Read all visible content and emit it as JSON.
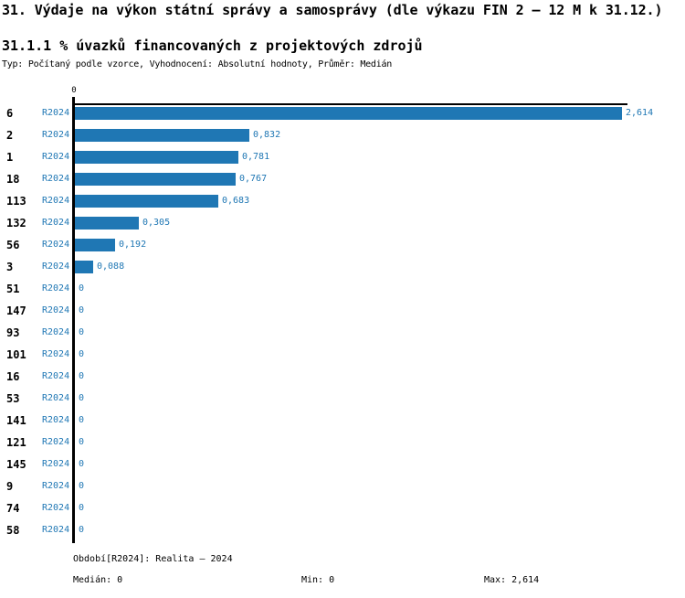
{
  "header": {
    "title": "31. Výdaje na výkon státní správy a samosprávy (dle výkazu FIN 2 – 12 M k 31.12.)",
    "subtitle": "31.1.1 % úvazků financovaných z projektových zdrojů",
    "meta": "Typ: Počítaný podle vzorce, Vyhodnocení: Absolutní hodnoty, Průměr: Medián"
  },
  "chart_data": {
    "type": "bar",
    "orientation": "horizontal",
    "title": "31.1.1 % úvazků financovaných z projektových zdrojů",
    "series_label": "R2024",
    "categories": [
      "6",
      "2",
      "1",
      "18",
      "113",
      "132",
      "56",
      "3",
      "51",
      "147",
      "93",
      "101",
      "16",
      "53",
      "141",
      "121",
      "145",
      "9",
      "74",
      "58"
    ],
    "values": [
      2.614,
      0.832,
      0.781,
      0.767,
      0.683,
      0.305,
      0.192,
      0.088,
      0,
      0,
      0,
      0,
      0,
      0,
      0,
      0,
      0,
      0,
      0,
      0
    ],
    "value_labels": [
      "2,614",
      "0,832",
      "0,781",
      "0,767",
      "0,683",
      "0,305",
      "0,192",
      "0,088",
      "0",
      "0",
      "0",
      "0",
      "0",
      "0",
      "0",
      "0",
      "0",
      "0",
      "0",
      "0"
    ],
    "xlim": [
      0,
      2.614
    ],
    "x_tick_labels": [
      "0"
    ],
    "axis_tick_label": "0",
    "grid": false,
    "legend_position": "none",
    "bar_color": "#1f77b4",
    "label_color": "#1f77b4"
  },
  "footer": {
    "period": "Období[R2024]: Realita – 2024",
    "median": "Medián: 0",
    "min": "Min: 0",
    "max": "Max: 2,614"
  }
}
